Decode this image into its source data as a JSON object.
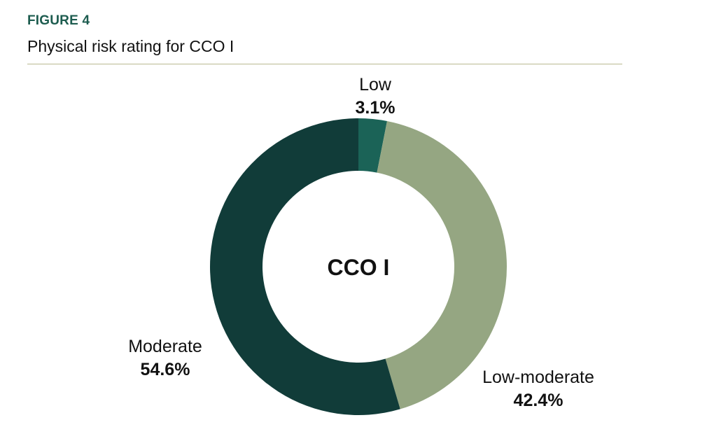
{
  "figure": {
    "label": "FIGURE 4",
    "title": "Physical risk rating for CCO I"
  },
  "chart_data": {
    "type": "pie",
    "title": "Physical risk rating for CCO I",
    "center_label": "CCO I",
    "slices": [
      {
        "label": "Low",
        "value": 3.1,
        "display": "3.1%",
        "color": "#1b6357"
      },
      {
        "label": "Low-moderate",
        "value": 42.4,
        "display": "42.4%",
        "color": "#95a682"
      },
      {
        "label": "Moderate",
        "value": 54.6,
        "display": "54.6%",
        "color": "#113c39"
      }
    ],
    "start": "12 o'clock",
    "direction": "clockwise",
    "legend": "none"
  },
  "colors": {
    "accent": "#1d5c4f",
    "rule": "#b9b891"
  }
}
